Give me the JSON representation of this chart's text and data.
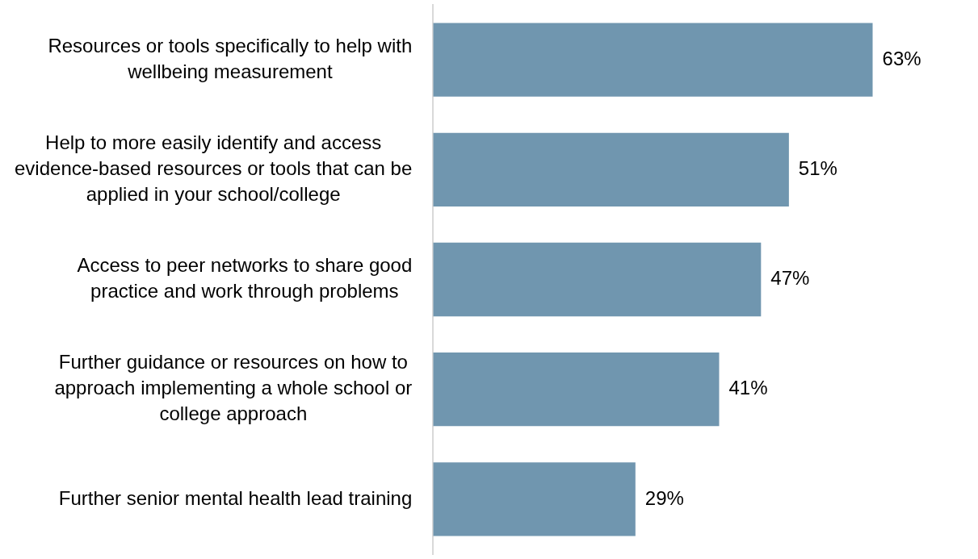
{
  "chart_data": {
    "type": "bar",
    "orientation": "horizontal",
    "categories": [
      "Resources or tools specifically to help with\nwellbeing measurement",
      "Help to more easily identify and access\nevidence-based resources or tools that can be\napplied in your school/college",
      "Access to peer networks to share good\npractice and work through problems",
      "Further guidance or resources on how to\napproach implementing a whole school or\ncollege approach",
      "Further senior mental health lead training"
    ],
    "values": [
      63,
      51,
      47,
      41,
      29
    ],
    "value_labels": [
      "63%",
      "51%",
      "47%",
      "41%",
      "29%"
    ],
    "color": "#7096af",
    "grid": false,
    "legend": false
  }
}
